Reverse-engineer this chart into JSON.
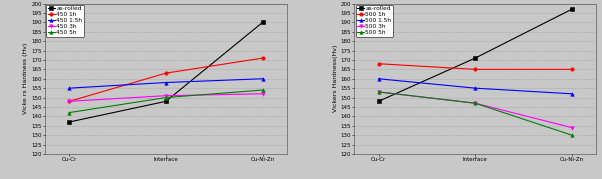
{
  "left": {
    "ylabel": "Vicke rs Hardness (Hv)",
    "xtick_labels": [
      "Cu-Cr",
      "Interface",
      "Cu-Ni-Zn"
    ],
    "ylim": [
      120,
      200
    ],
    "yticks": [
      120,
      125,
      130,
      135,
      140,
      145,
      150,
      155,
      160,
      165,
      170,
      175,
      180,
      185,
      190,
      195,
      200
    ],
    "series": [
      {
        "label": "as-rolled",
        "color": "#000000",
        "marker": "s",
        "values": [
          137,
          148,
          190
        ]
      },
      {
        "label": "450 1h",
        "color": "#ff0000",
        "marker": "o",
        "values": [
          148,
          163,
          171
        ]
      },
      {
        "label": "450 1.5h",
        "color": "#0000ff",
        "marker": "^",
        "values": [
          155,
          158,
          160
        ]
      },
      {
        "label": "450 3h",
        "color": "#ff00ff",
        "marker": "v",
        "values": [
          148,
          151,
          152
        ]
      },
      {
        "label": "450 5h",
        "color": "#008000",
        "marker": "^",
        "values": [
          142,
          150,
          154
        ]
      }
    ]
  },
  "right": {
    "ylabel": "Vickers Hardness(Hv)",
    "xtick_labels": [
      "Cu-Cr",
      "Interface",
      "Cu-Ni-Zn"
    ],
    "ylim": [
      120,
      200
    ],
    "yticks": [
      120,
      125,
      130,
      135,
      140,
      145,
      150,
      155,
      160,
      165,
      170,
      175,
      180,
      185,
      190,
      195,
      200
    ],
    "series": [
      {
        "label": "as-rolled",
        "color": "#000000",
        "marker": "s",
        "values": [
          148,
          171,
          197
        ]
      },
      {
        "label": "500 1h",
        "color": "#ff0000",
        "marker": "o",
        "values": [
          168,
          165,
          165
        ]
      },
      {
        "label": "500 1.5h",
        "color": "#0000ff",
        "marker": "^",
        "values": [
          160,
          155,
          152
        ]
      },
      {
        "label": "500 3h",
        "color": "#ff00ff",
        "marker": "v",
        "values": [
          153,
          147,
          134
        ]
      },
      {
        "label": "500 5h",
        "color": "#008000",
        "marker": "^",
        "values": [
          153,
          147,
          130
        ]
      }
    ]
  },
  "bg_color": "#c8c8c8",
  "plot_bg_color": "#c8c8c8",
  "grid_color": "#888888",
  "grid_style": "dotted",
  "line_width": 0.8,
  "marker_size": 2.5,
  "font_size": 4.5,
  "legend_font_size": 4.2,
  "tick_font_size": 4.0
}
